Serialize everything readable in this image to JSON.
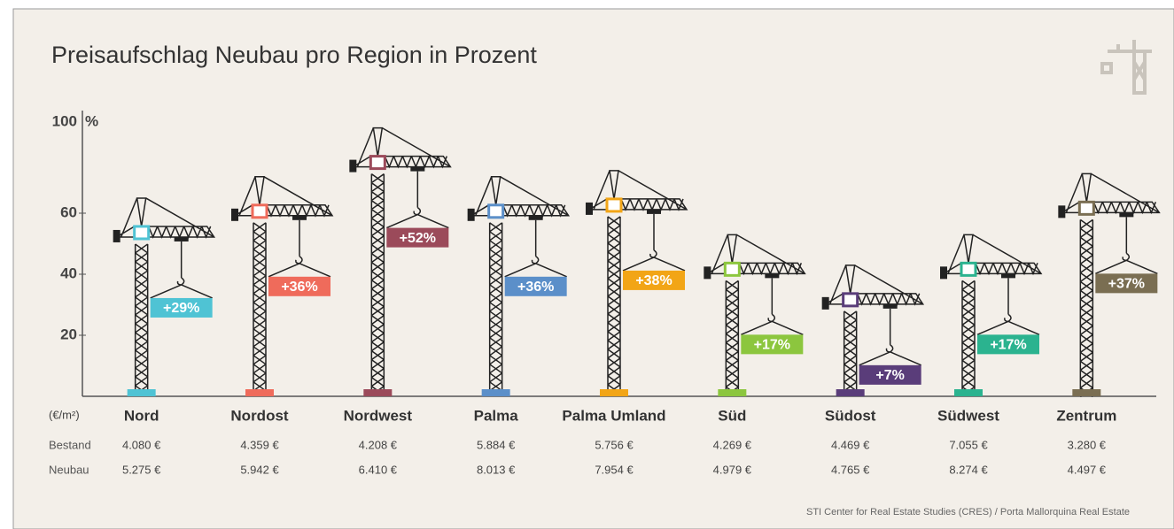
{
  "chart_data": {
    "type": "bar",
    "title": "Preisaufschlag Neubau pro Region in Prozent",
    "y_unit": "%",
    "ylim": [
      0,
      100
    ],
    "yticks": [
      20,
      40,
      60,
      100
    ],
    "categories": [
      "Nord",
      "Nordost",
      "Nordwest",
      "Palma",
      "Palma Umland",
      "Süd",
      "Südost",
      "Südwest",
      "Zentrum"
    ],
    "values": [
      29,
      36,
      52,
      36,
      38,
      17,
      7,
      17,
      37
    ],
    "value_labels": [
      "+29%",
      "+36%",
      "+52%",
      "+36%",
      "+38%",
      "+17%",
      "+7%",
      "+17%",
      "+37%"
    ],
    "colors": [
      "#4fc3d4",
      "#ef6b5b",
      "#9b4a5a",
      "#5b8fc9",
      "#f2a516",
      "#8cc63e",
      "#5a3d7a",
      "#2bb38f",
      "#7a6e52"
    ],
    "table_unit": "(€/m²)",
    "rows": [
      {
        "name": "Bestand",
        "values": [
          "4.080 €",
          "4.359 €",
          "4.208 €",
          "5.884 €",
          "5.756 €",
          "4.269 €",
          "4.469 €",
          "7.055 €",
          "3.280 €"
        ]
      },
      {
        "name": "Neubau",
        "values": [
          "5.275 €",
          "5.942 €",
          "6.410 €",
          "8.013 €",
          "7.954 €",
          "4.979 €",
          "4.765 €",
          "8.274 €",
          "4.497 €"
        ]
      }
    ],
    "source": "STI Center for Real Estate Studies (CRES) / Porta Mallorquina Real Estate"
  }
}
